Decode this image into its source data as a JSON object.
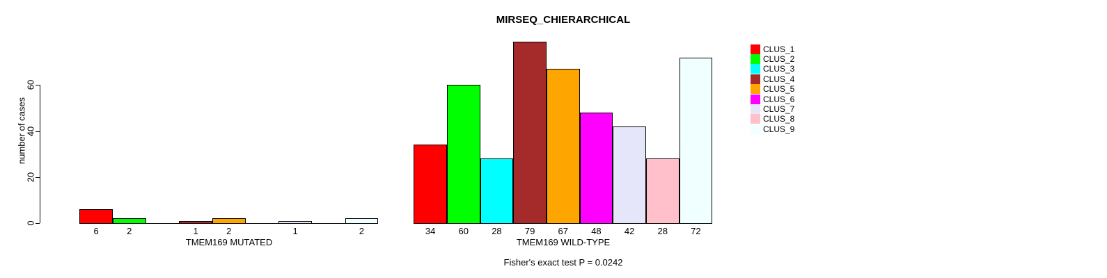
{
  "title": "MIRSEQ_CHIERARCHICAL",
  "chart_data": {
    "type": "bar",
    "title": "MIRSEQ_CHIERARCHICAL",
    "ylabel": "number of cases",
    "yticks": [
      0,
      20,
      40,
      60
    ],
    "ylim": [
      0,
      79
    ],
    "grid": false,
    "legend_position": "right",
    "clusters": [
      {
        "name": "CLUS_1",
        "color": "#FF0000"
      },
      {
        "name": "CLUS_2",
        "color": "#00FF00"
      },
      {
        "name": "CLUS_3",
        "color": "#00FFFF"
      },
      {
        "name": "CLUS_4",
        "color": "#A52A2A"
      },
      {
        "name": "CLUS_5",
        "color": "#FFA500"
      },
      {
        "name": "CLUS_6",
        "color": "#FF00FF"
      },
      {
        "name": "CLUS_7",
        "color": "#E6E6FA"
      },
      {
        "name": "CLUS_8",
        "color": "#FFC0CB"
      },
      {
        "name": "CLUS_9",
        "color": "#F0FFFF"
      }
    ],
    "groups": [
      {
        "label": "TMEM169 MUTATED",
        "values": [
          6,
          2,
          0,
          1,
          2,
          0,
          1,
          0,
          2
        ]
      },
      {
        "label": "TMEM169 WILD-TYPE",
        "values": [
          34,
          60,
          28,
          79,
          67,
          48,
          42,
          28,
          72
        ]
      }
    ],
    "annotation": "Fisher's exact test P = 0.0242",
    "axis_color": "#000000",
    "background_color": "#FFFFFF"
  }
}
